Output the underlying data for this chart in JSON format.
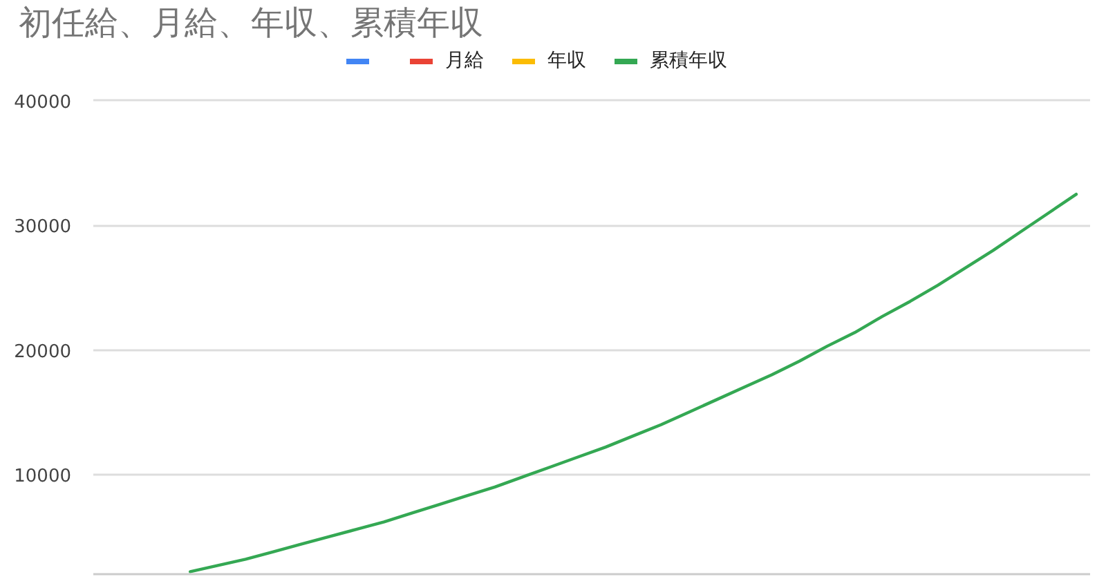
{
  "chart_data": {
    "type": "line",
    "title": "初任給、月給、年収、累積年収",
    "categories": [
      null,
      null,
      null,
      null,
      null,
      null,
      null,
      null,
      null,
      null,
      null,
      null,
      null,
      null,
      null,
      null,
      null,
      null,
      null,
      null,
      null,
      null,
      null,
      null,
      null,
      null,
      null,
      null,
      null,
      null,
      null,
      null,
      null,
      null,
      null,
      null
    ],
    "series": [
      {
        "color": "#4285f4",
        "values": [
          null,
          null,
          null,
          null,
          null,
          null,
          null,
          null,
          null,
          null,
          null,
          null,
          null,
          null,
          null,
          null,
          null,
          null,
          null,
          null,
          null,
          null,
          null,
          null,
          null,
          null,
          null,
          null,
          null,
          null,
          null,
          null,
          null,
          null,
          null,
          null
        ]
      },
      {
        "name": "月給",
        "color": "#ea4335",
        "values": [
          null,
          null,
          null,
          null,
          null,
          null,
          null,
          null,
          null,
          null,
          null,
          null,
          null,
          null,
          null,
          null,
          null,
          null,
          null,
          null,
          null,
          null,
          null,
          null,
          null,
          null,
          null,
          null,
          null,
          null,
          null,
          null,
          null,
          null,
          null,
          null
        ]
      },
      {
        "name": "年収",
        "color": "#fbbc04",
        "values": [
          null,
          null,
          null,
          null,
          null,
          null,
          null,
          null,
          null,
          null,
          null,
          null,
          null,
          null,
          null,
          null,
          null,
          null,
          null,
          null,
          null,
          null,
          null,
          null,
          null,
          null,
          null,
          null,
          null,
          null,
          null,
          null,
          null,
          null,
          null,
          null
        ]
      },
      {
        "name": "累積年収",
        "color": "#34a853",
        "values": [
          null,
          null,
          null,
          2200,
          2700,
          3200,
          3800,
          4400,
          5000,
          5600,
          6200,
          6900,
          7600,
          8300,
          9000,
          9800,
          10600,
          11400,
          12200,
          13100,
          14000,
          15000,
          16000,
          17000,
          18000,
          19100,
          20300,
          21400,
          22700,
          23900,
          25200,
          26600,
          28000,
          29500,
          31000,
          32500
        ]
      }
    ],
    "ylim": [
      2000,
      40000
    ],
    "yticks": [
      10000,
      20000,
      30000,
      40000
    ],
    "grid": "y",
    "legend": "top",
    "tick_labels": "y",
    "line_style": "solid"
  }
}
